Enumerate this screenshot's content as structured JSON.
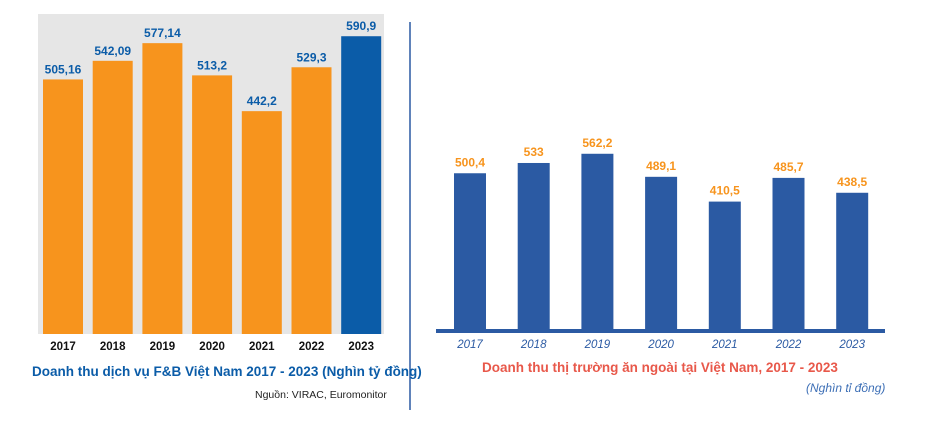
{
  "chart_data": [
    {
      "type": "bar",
      "title": "Doanh thu dịch vụ F&B Việt Nam 2017 - 2023 (Nghìn tỷ đồng)",
      "source": "Nguồn: VIRAC, Euromonitor",
      "categories": [
        "2017",
        "2018",
        "2019",
        "2020",
        "2021",
        "2022",
        "2023"
      ],
      "values": [
        505.16,
        542.09,
        577.14,
        513.2,
        442.2,
        529.3,
        590.9
      ],
      "value_labels": [
        "505,16",
        "542,09",
        "577,14",
        "513,2",
        "442,2",
        "529,3",
        "590,9"
      ],
      "ylim": [
        0,
        635
      ],
      "colors": {
        "default": "#f7941d",
        "highlight": "#0b5ca8",
        "background": "#e6e6e6",
        "label": "#0b5ca8"
      },
      "highlight_category": "2023",
      "xlabel": "",
      "ylabel": ""
    },
    {
      "type": "bar",
      "title": "Doanh thu thị trường ăn ngoài tại Việt Nam, 2017 - 2023",
      "unit": "(Nghìn tỉ đồng)",
      "categories": [
        "2017",
        "2018",
        "2019",
        "2020",
        "2021",
        "2022",
        "2023"
      ],
      "values": [
        500.4,
        533,
        562.2,
        489.1,
        410.5,
        485.7,
        438.5
      ],
      "value_labels": [
        "500,4",
        "533",
        "562,2",
        "489,1",
        "410,5",
        "485,7",
        "438,5"
      ],
      "ylim": [
        0,
        1050
      ],
      "colors": {
        "bar": "#2b5aa3",
        "label": "#f7941d",
        "axis": "#2b5aa3",
        "tick": "#2b5aa3"
      },
      "xlabel": "",
      "ylabel": ""
    }
  ],
  "colors": {
    "divider": "#2b5aa3"
  }
}
